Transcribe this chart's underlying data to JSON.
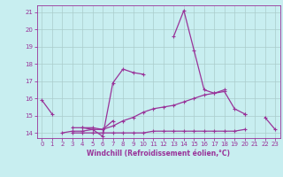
{
  "xlabel": "Windchill (Refroidissement éolien,°C)",
  "x": [
    0,
    1,
    2,
    3,
    4,
    5,
    6,
    7,
    8,
    9,
    10,
    11,
    12,
    13,
    14,
    15,
    16,
    17,
    18,
    19,
    20,
    21,
    22,
    23
  ],
  "line1": [
    15.9,
    15.1,
    null,
    null,
    14.3,
    14.2,
    13.8,
    16.9,
    17.7,
    17.5,
    17.4,
    null,
    null,
    19.6,
    21.1,
    18.8,
    16.5,
    16.3,
    16.5,
    null,
    15.1,
    null,
    14.9,
    14.2
  ],
  "line2": [
    null,
    null,
    14.0,
    14.1,
    14.1,
    14.2,
    14.2,
    14.7,
    null,
    null,
    null,
    null,
    null,
    null,
    null,
    null,
    null,
    null,
    null,
    null,
    null,
    null,
    null,
    null
  ],
  "line3": [
    null,
    null,
    null,
    14.3,
    14.3,
    14.3,
    14.2,
    14.4,
    14.7,
    14.9,
    15.2,
    15.4,
    15.5,
    15.6,
    15.8,
    16.0,
    16.2,
    16.3,
    16.4,
    15.4,
    15.1,
    null,
    null,
    null
  ],
  "line4": [
    null,
    null,
    null,
    14.0,
    14.0,
    14.0,
    14.0,
    14.0,
    14.0,
    14.0,
    14.0,
    14.1,
    14.1,
    14.1,
    14.1,
    14.1,
    14.1,
    14.1,
    14.1,
    14.1,
    14.2,
    null,
    null,
    null
  ],
  "line_color": "#993399",
  "bg_color": "#c8eef0",
  "grid_color": "#aacccc",
  "ylim": [
    13.7,
    21.4
  ],
  "xlim": [
    -0.5,
    23.5
  ],
  "yticks": [
    14,
    15,
    16,
    17,
    18,
    19,
    20,
    21
  ],
  "xticks": [
    0,
    1,
    2,
    3,
    4,
    5,
    6,
    7,
    8,
    9,
    10,
    11,
    12,
    13,
    14,
    15,
    16,
    17,
    18,
    19,
    20,
    21,
    22,
    23
  ],
  "marker": "+",
  "markersize": 3.5,
  "linewidth": 0.9,
  "tick_fontsize": 5,
  "xlabel_fontsize": 5.5
}
